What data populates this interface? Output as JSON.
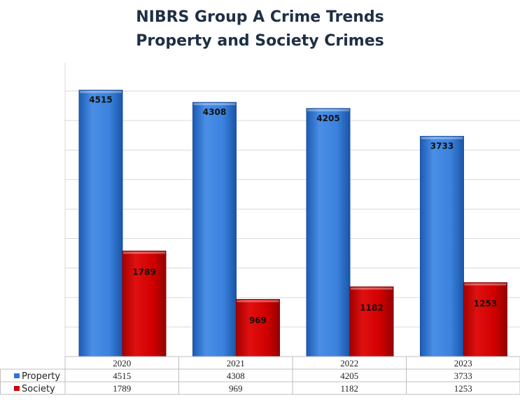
{
  "chart_data": {
    "type": "bar",
    "title": "NIBRS Group A Crime Trends",
    "subtitle": "Property and Society Crimes",
    "categories": [
      "2020",
      "2021",
      "2022",
      "2023"
    ],
    "series": [
      {
        "name": "Property",
        "values": [
          4515,
          4308,
          4205,
          3733
        ]
      },
      {
        "name": "Society",
        "values": [
          1789,
          969,
          1182,
          1253
        ]
      }
    ],
    "ylim": [
      0,
      4500
    ],
    "grid": true,
    "data_table": true,
    "colors": {
      "Property": "#2e74d4",
      "Society": "#cc0000"
    }
  }
}
